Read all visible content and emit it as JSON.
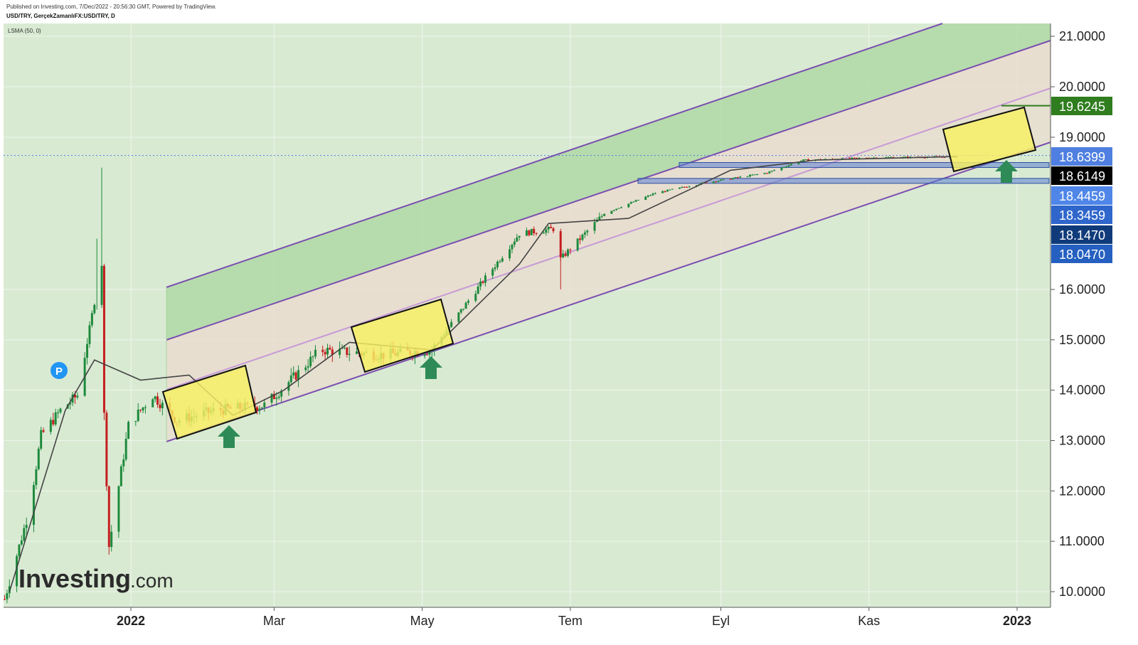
{
  "header": {
    "published": "Published on Investing.com, 7/Dec/2022 - 20:56:30 GMT, Powered by TradingView.",
    "symbol": "USD/TRY, GerçekZamanlıFX:USD/TRY, D",
    "indicator": "LSMA (50, 0)"
  },
  "logo": {
    "word": "Investing",
    "suffix": ".com"
  },
  "marker": {
    "label": "P"
  },
  "colors": {
    "plot_bg": "#d9ead3",
    "upper_band": "#a9d5a0",
    "lower_band": "#eadccf",
    "channel_line": "#7b4fb0",
    "mid_line": "#c79ad6",
    "candle_up": "#1e8a3c",
    "candle_down": "#c41e1e",
    "lsma": "#444444",
    "highlight_box": "#f6ef62",
    "arrow": "#2e8b57",
    "support_zone": "#5b7fd1"
  },
  "chart_data": {
    "type": "candlestick",
    "title": "USD/TRY, GerçekZamanlıFX:USD/TRY, D",
    "series": [
      {
        "name": "USD/TRY"
      },
      {
        "name": "LSMA (50, 0)"
      }
    ],
    "x_ticks": [
      {
        "label": "2022",
        "bold": true,
        "date": "2022-01-01"
      },
      {
        "label": "Mar",
        "bold": false,
        "date": "2022-03-01"
      },
      {
        "label": "May",
        "bold": false,
        "date": "2022-05-01"
      },
      {
        "label": "Tem",
        "bold": false,
        "date": "2022-07-01"
      },
      {
        "label": "Eyl",
        "bold": false,
        "date": "2022-09-01"
      },
      {
        "label": "Kas",
        "bold": false,
        "date": "2022-11-01"
      },
      {
        "label": "2023",
        "bold": true,
        "date": "2023-01-01"
      }
    ],
    "y_ticks": [
      "10.0000",
      "11.0000",
      "12.0000",
      "13.0000",
      "14.0000",
      "15.0000",
      "16.0000",
      "19.0000",
      "20.0000",
      "21.0000"
    ],
    "price_tags": [
      {
        "label": "19.6245",
        "value": 19.6245,
        "color": "#2f7d1e"
      },
      {
        "label": "18.6399",
        "value": 18.6399,
        "color": "#4f7fe0"
      },
      {
        "label": "18.6149",
        "value": 18.6149,
        "color": "#000000"
      },
      {
        "label": "18.4459",
        "value": 18.4459,
        "color": "#4f86e8"
      },
      {
        "label": "18.3459",
        "value": 18.3459,
        "color": "#2f66cc"
      },
      {
        "label": "18.1470",
        "value": 18.147,
        "color": "#103b7a"
      },
      {
        "label": "18.0470",
        "value": 18.047,
        "color": "#2560c0"
      }
    ],
    "ohlc_keyframes": [
      {
        "date": "2021-11-10",
        "close": 9.85
      },
      {
        "date": "2021-11-20",
        "close": 11.6
      },
      {
        "date": "2021-11-25",
        "close": 13.1
      },
      {
        "date": "2021-12-03",
        "close": 13.6
      },
      {
        "date": "2021-12-10",
        "close": 13.9
      },
      {
        "date": "2021-12-16",
        "close": 15.5
      },
      {
        "date": "2021-12-20",
        "close": 16.5
      },
      {
        "date": "2021-12-21",
        "close": 13.5
      },
      {
        "date": "2021-12-23",
        "close": 10.9
      },
      {
        "date": "2021-12-31",
        "close": 13.3
      },
      {
        "date": "2022-01-10",
        "close": 13.9
      },
      {
        "date": "2022-01-20",
        "close": 13.4
      },
      {
        "date": "2022-02-05",
        "close": 13.6
      },
      {
        "date": "2022-02-25",
        "close": 13.7
      },
      {
        "date": "2022-03-10",
        "close": 14.3
      },
      {
        "date": "2022-03-20",
        "close": 14.8
      },
      {
        "date": "2022-04-15",
        "close": 14.7
      },
      {
        "date": "2022-05-05",
        "close": 14.8
      },
      {
        "date": "2022-05-25",
        "close": 16.1
      },
      {
        "date": "2022-06-10",
        "close": 17.1
      },
      {
        "date": "2022-06-25",
        "close": 17.2
      },
      {
        "date": "2022-06-27",
        "close": 16.6
      },
      {
        "date": "2022-07-15",
        "close": 17.5
      },
      {
        "date": "2022-08-05",
        "close": 17.9
      },
      {
        "date": "2022-08-25",
        "close": 18.1
      },
      {
        "date": "2022-09-20",
        "close": 18.3
      },
      {
        "date": "2022-10-05",
        "close": 18.55
      },
      {
        "date": "2022-11-05",
        "close": 18.6
      },
      {
        "date": "2022-12-07",
        "close": 18.6149
      }
    ],
    "lsma_keyframes": [
      {
        "date": "2021-11-12",
        "value": 10.0
      },
      {
        "date": "2021-12-05",
        "value": 13.6
      },
      {
        "date": "2021-12-17",
        "value": 14.6
      },
      {
        "date": "2022-01-05",
        "value": 14.2
      },
      {
        "date": "2022-01-25",
        "value": 14.3
      },
      {
        "date": "2022-02-12",
        "value": 13.5
      },
      {
        "date": "2022-03-05",
        "value": 14.0
      },
      {
        "date": "2022-04-01",
        "value": 14.95
      },
      {
        "date": "2022-05-05",
        "value": 14.8
      },
      {
        "date": "2022-06-10",
        "value": 16.5
      },
      {
        "date": "2022-06-22",
        "value": 17.3
      },
      {
        "date": "2022-07-25",
        "value": 17.4
      },
      {
        "date": "2022-09-05",
        "value": 18.35
      },
      {
        "date": "2022-10-10",
        "value": 18.55
      },
      {
        "date": "2022-12-07",
        "value": 18.62
      }
    ]
  }
}
